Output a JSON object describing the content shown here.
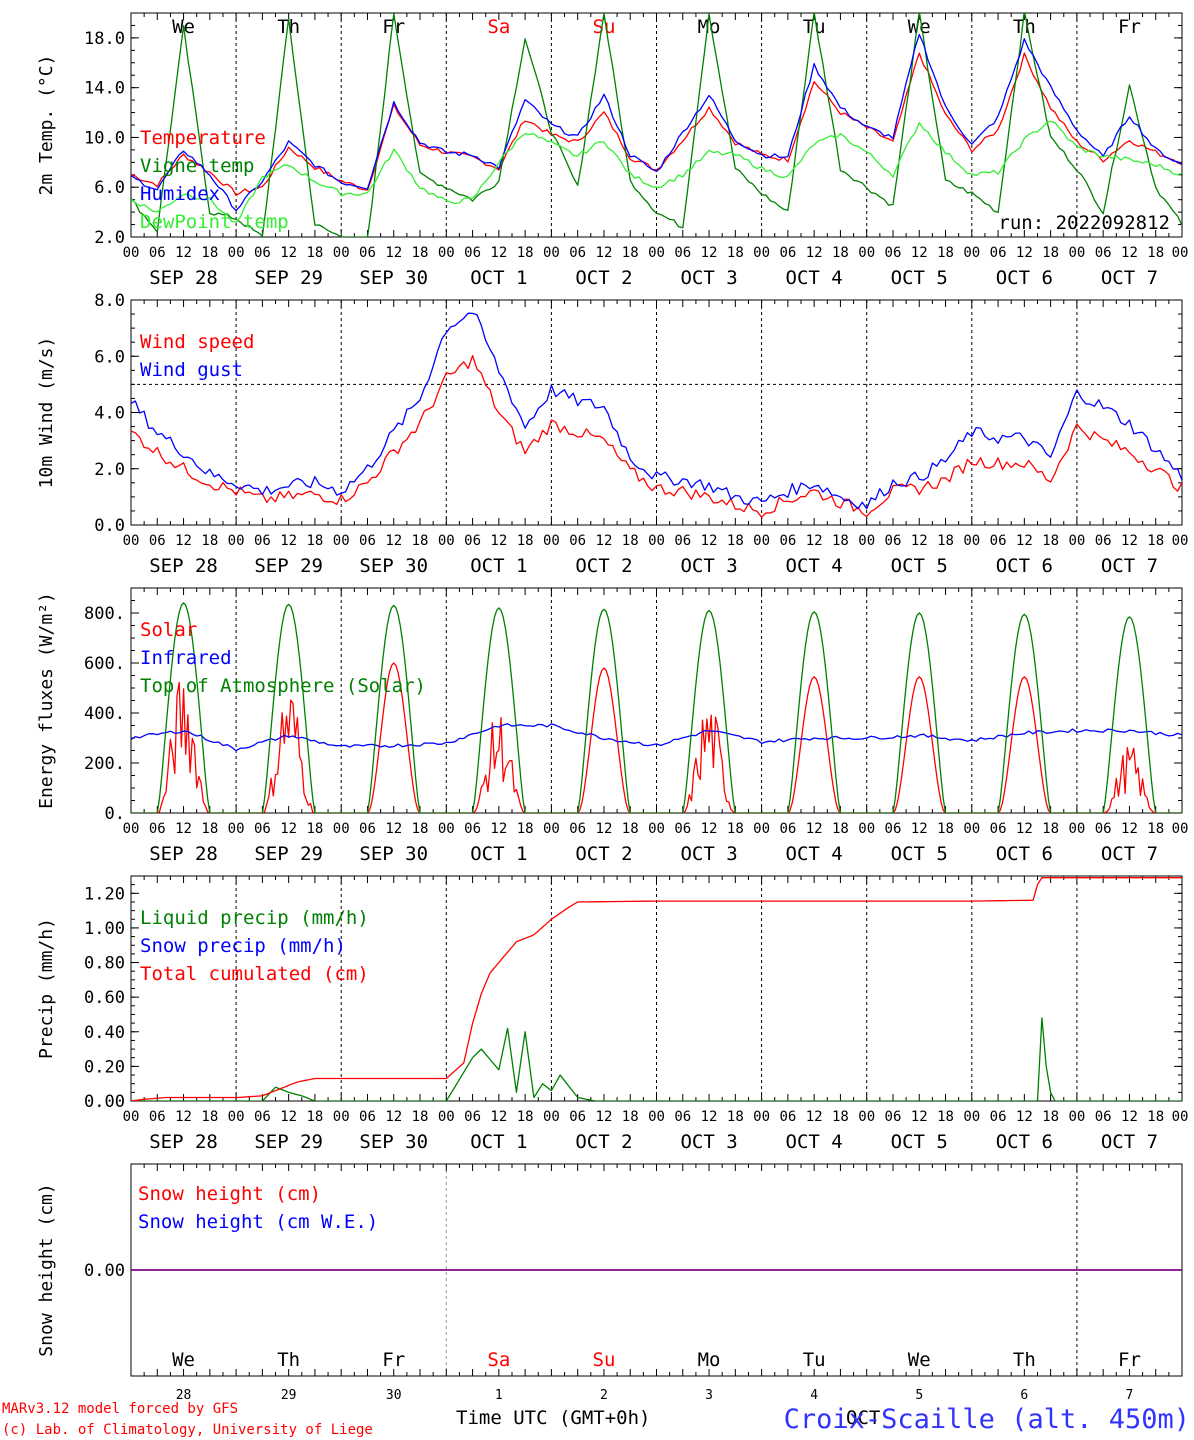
{
  "days": [
    {
      "dow": "We",
      "date": "SEP 28",
      "num": "28",
      "weekend": false
    },
    {
      "dow": "Th",
      "date": "SEP 29",
      "num": "29",
      "weekend": false
    },
    {
      "dow": "Fr",
      "date": "SEP 30",
      "num": "30",
      "weekend": false
    },
    {
      "dow": "Sa",
      "date": "OCT 1",
      "num": "1",
      "weekend": true
    },
    {
      "dow": "Su",
      "date": "OCT 2",
      "num": "2",
      "weekend": true
    },
    {
      "dow": "Mo",
      "date": "OCT 3",
      "num": "3",
      "weekend": false
    },
    {
      "dow": "Tu",
      "date": "OCT 4",
      "num": "4",
      "weekend": false
    },
    {
      "dow": "We",
      "date": "OCT 5",
      "num": "5",
      "weekend": false
    },
    {
      "dow": "Th",
      "date": "OCT 6",
      "num": "6",
      "weekend": false
    },
    {
      "dow": "Fr",
      "date": "OCT 7",
      "num": "7",
      "weekend": false
    }
  ],
  "hour_labels": [
    "00",
    "06",
    "12",
    "18"
  ],
  "last_hour_label": "00",
  "run_label": "run: 2022092812",
  "footer": {
    "model": "MARv3.12 model forced by GFS",
    "lab": "(c) Lab. of Climatology, University of Liege",
    "axis_title": "Time UTC (GMT+0h)",
    "month": "OCT",
    "station": "Croix-Scaille (alt. 450m)"
  },
  "colors": {
    "red": "#ff0000",
    "green": "#008000",
    "blue": "#0000ff",
    "lightgreen": "#33ee33",
    "purple": "#7f007f",
    "axis": "#000000",
    "weekend": "#ff0000"
  },
  "chart_data": [
    {
      "type": "line",
      "ylabel": "2m Temp. (°C)",
      "ylim": [
        2,
        20
      ],
      "yticks": [
        2,
        6,
        10,
        14,
        18
      ],
      "ytick_labels": [
        "2.0",
        "6.0",
        "10.0",
        "14.0",
        "18.0"
      ],
      "x_unit": "hours since SEP 28 00 UTC",
      "legend_placement": "left",
      "series": [
        {
          "name": "Temperature",
          "color": "#ff0000",
          "x": [
            0,
            6,
            12,
            18,
            24,
            30,
            36,
            42,
            48,
            54,
            60,
            66,
            72,
            78,
            84,
            90,
            96,
            102,
            108,
            114,
            120,
            126,
            132,
            138,
            144,
            150,
            156,
            162,
            168,
            174,
            180,
            186,
            192,
            198,
            204,
            210,
            216,
            222,
            228,
            234,
            240
          ],
          "values": [
            7.0,
            6.2,
            8.6,
            7.2,
            5.5,
            6.0,
            9.2,
            7.6,
            6.5,
            5.8,
            12.5,
            9.4,
            8.8,
            8.4,
            7.5,
            11.5,
            10.2,
            9.6,
            12.0,
            8.4,
            7.4,
            9.8,
            12.4,
            9.6,
            8.6,
            8.2,
            14.5,
            12.0,
            10.8,
            9.6,
            16.8,
            11.8,
            9.0,
            10.6,
            16.6,
            12.4,
            9.6,
            8.2,
            9.8,
            8.8,
            8.0
          ]
        },
        {
          "name": "Vigne temp",
          "color": "#008000",
          "x": [
            0,
            6,
            12,
            18,
            24,
            30,
            36,
            42,
            48,
            54,
            60,
            66,
            72,
            78,
            84,
            90,
            96,
            102,
            108,
            114,
            120,
            126,
            132,
            138,
            144,
            150,
            156,
            162,
            168,
            174,
            180,
            186,
            192,
            198,
            204,
            210,
            216,
            222,
            228,
            234,
            240
          ],
          "values": [
            5.0,
            2.5,
            18.8,
            4.0,
            3.5,
            2.0,
            19.5,
            3.0,
            2.0,
            1.5,
            20.0,
            7.0,
            6.0,
            5.0,
            6.5,
            18.0,
            10.5,
            6.0,
            20.0,
            6.5,
            4.0,
            2.8,
            20.0,
            7.5,
            5.5,
            4.0,
            20.0,
            7.5,
            6.0,
            4.5,
            20.0,
            6.5,
            5.5,
            4.0,
            20.0,
            10.0,
            7.5,
            4.0,
            14.2,
            6.0,
            3.0
          ]
        },
        {
          "name": "Humidex",
          "color": "#0000ff",
          "x": [
            0,
            6,
            12,
            18,
            24,
            30,
            36,
            42,
            48,
            54,
            60,
            66,
            72,
            78,
            84,
            90,
            96,
            102,
            108,
            114,
            120,
            126,
            132,
            138,
            144,
            150,
            156,
            162,
            168,
            174,
            180,
            186,
            192,
            198,
            204,
            210,
            216,
            222,
            228,
            234,
            240
          ],
          "values": [
            6.8,
            5.8,
            9.0,
            7.0,
            4.2,
            6.5,
            9.6,
            7.8,
            6.4,
            6.0,
            12.8,
            9.6,
            8.8,
            8.6,
            7.6,
            13.0,
            11.0,
            10.0,
            13.4,
            8.6,
            7.2,
            10.4,
            13.4,
            9.8,
            8.6,
            8.4,
            15.8,
            12.4,
            10.8,
            10.0,
            18.4,
            12.4,
            9.4,
            11.6,
            17.8,
            14.0,
            10.6,
            8.4,
            11.8,
            9.0,
            7.8
          ]
        },
        {
          "name": "DewPoint temp",
          "color": "#33ee33",
          "x": [
            0,
            6,
            12,
            18,
            24,
            30,
            36,
            42,
            48,
            54,
            60,
            66,
            72,
            78,
            84,
            90,
            96,
            102,
            108,
            114,
            120,
            126,
            132,
            138,
            144,
            150,
            156,
            162,
            168,
            174,
            180,
            186,
            192,
            198,
            204,
            210,
            216,
            222,
            228,
            234,
            240
          ],
          "values": [
            5.0,
            4.0,
            5.5,
            5.0,
            3.0,
            6.8,
            7.8,
            6.5,
            5.5,
            5.5,
            9.0,
            6.0,
            4.8,
            5.0,
            8.0,
            10.5,
            9.5,
            8.5,
            9.8,
            7.0,
            6.0,
            7.0,
            8.8,
            8.6,
            7.5,
            6.8,
            9.5,
            10.2,
            8.8,
            7.0,
            11.2,
            8.8,
            7.0,
            7.2,
            9.8,
            11.4,
            9.2,
            8.5,
            8.2,
            7.8,
            7.0
          ]
        }
      ]
    },
    {
      "type": "line",
      "ylabel": "10m Wind (m/s)",
      "ylim": [
        0,
        8
      ],
      "yticks": [
        0,
        2,
        4,
        6,
        8
      ],
      "ytick_labels": [
        "0.0",
        "2.0",
        "4.0",
        "6.0",
        "8.0"
      ],
      "reference_line": 5,
      "legend_placement": "left",
      "series": [
        {
          "name": "Wind speed",
          "color": "#ff0000",
          "x": [
            0,
            6,
            12,
            18,
            24,
            30,
            36,
            42,
            48,
            54,
            60,
            66,
            72,
            78,
            84,
            90,
            96,
            102,
            108,
            114,
            120,
            126,
            132,
            138,
            144,
            150,
            156,
            162,
            168,
            174,
            180,
            186,
            192,
            198,
            204,
            210,
            216,
            222,
            228,
            234,
            240
          ],
          "values": [
            3.3,
            2.6,
            2.0,
            1.5,
            1.2,
            0.9,
            1.0,
            1.1,
            0.9,
            1.5,
            2.6,
            3.6,
            5.2,
            5.9,
            4.0,
            2.6,
            3.6,
            3.3,
            3.0,
            1.9,
            1.3,
            1.2,
            1.0,
            0.7,
            0.5,
            0.9,
            1.2,
            0.8,
            0.5,
            1.2,
            1.3,
            1.6,
            2.3,
            2.2,
            2.2,
            1.6,
            3.5,
            3.0,
            2.6,
            2.0,
            1.3
          ]
        },
        {
          "name": "Wind gust",
          "color": "#0000ff",
          "x": [
            0,
            6,
            12,
            18,
            24,
            30,
            36,
            42,
            48,
            54,
            60,
            66,
            72,
            78,
            84,
            90,
            96,
            102,
            108,
            114,
            120,
            126,
            132,
            138,
            144,
            150,
            156,
            162,
            168,
            174,
            180,
            186,
            192,
            198,
            204,
            210,
            216,
            222,
            228,
            234,
            240
          ],
          "values": [
            4.4,
            3.3,
            2.6,
            1.8,
            1.5,
            1.2,
            1.4,
            1.5,
            1.2,
            2.0,
            3.3,
            4.5,
            7.0,
            7.6,
            5.5,
            3.5,
            4.8,
            4.4,
            4.2,
            2.4,
            1.7,
            1.6,
            1.4,
            1.0,
            0.8,
            1.2,
            1.5,
            1.0,
            0.7,
            1.5,
            1.7,
            2.3,
            3.3,
            3.1,
            3.1,
            2.4,
            4.7,
            4.2,
            3.6,
            2.7,
            1.7
          ]
        }
      ]
    },
    {
      "type": "line",
      "ylabel": "Energy fluxes (W/m²)",
      "ylim": [
        0,
        900
      ],
      "yticks": [
        0,
        200,
        400,
        600,
        800
      ],
      "ytick_labels": [
        "0.",
        "200.",
        "400.",
        "600.",
        "800."
      ],
      "legend_placement": "left",
      "series": [
        {
          "name": "Solar",
          "color": "#ff0000",
          "day_peaks": [
            580,
            550,
            600,
            420,
            580,
            470,
            545,
            545,
            545,
            280
          ]
        },
        {
          "name": "Infrared",
          "color": "#0000ff",
          "x": [
            0,
            12,
            24,
            36,
            48,
            60,
            72,
            84,
            96,
            108,
            120,
            132,
            144,
            156,
            168,
            180,
            192,
            204,
            216,
            228,
            240
          ],
          "values": [
            300,
            330,
            255,
            310,
            265,
            270,
            280,
            350,
            350,
            300,
            270,
            330,
            285,
            300,
            300,
            310,
            290,
            320,
            330,
            330,
            310
          ]
        },
        {
          "name": "Top of Atmosphere (Solar)",
          "color": "#008000",
          "day_peaks": [
            840,
            835,
            830,
            820,
            815,
            810,
            805,
            800,
            795,
            785
          ]
        }
      ]
    },
    {
      "type": "line",
      "ylabel": "Precip (mm/h)",
      "ylim": [
        0,
        1.3
      ],
      "yticks": [
        0,
        0.2,
        0.4,
        0.6,
        0.8,
        1.0,
        1.2
      ],
      "ytick_labels": [
        "0.00",
        "0.20",
        "0.40",
        "0.60",
        "0.80",
        "1.00",
        "1.20"
      ],
      "legend_placement": "left",
      "series": [
        {
          "name": "Liquid precip (mm/h)",
          "color": "#008000",
          "x": [
            0,
            30,
            33,
            36,
            39,
            42,
            48,
            72,
            78,
            80,
            84,
            86,
            88,
            90,
            92,
            94,
            96,
            98,
            102,
            106,
            110,
            120,
            144,
            190,
            207,
            208,
            209,
            210,
            211,
            216,
            240
          ],
          "values": [
            0,
            0,
            0.08,
            0.05,
            0.03,
            0,
            0,
            0,
            0.25,
            0.3,
            0.18,
            0.42,
            0.05,
            0.4,
            0.02,
            0.1,
            0.06,
            0.15,
            0.02,
            0,
            0,
            0,
            0,
            0,
            0,
            0.48,
            0.2,
            0.05,
            0,
            0,
            0
          ]
        },
        {
          "name": "Snow precip (mm/h)",
          "color": "#0000ff",
          "x": [
            0,
            240
          ],
          "values": [
            0,
            0
          ]
        },
        {
          "name": "Total cumulated (cm)",
          "color": "#ff0000",
          "x": [
            0,
            3,
            8,
            24,
            30,
            34,
            38,
            42,
            48,
            72,
            76,
            78,
            80,
            82,
            84,
            86,
            88,
            90,
            92,
            96,
            100,
            102,
            120,
            144,
            168,
            192,
            206,
            207,
            208,
            210,
            240
          ],
          "values": [
            0,
            0.01,
            0.02,
            0.02,
            0.03,
            0.07,
            0.11,
            0.13,
            0.13,
            0.13,
            0.22,
            0.45,
            0.62,
            0.74,
            0.8,
            0.86,
            0.92,
            0.94,
            0.96,
            1.05,
            1.12,
            1.15,
            1.155,
            1.155,
            1.155,
            1.155,
            1.16,
            1.25,
            1.29,
            1.29,
            1.29
          ]
        }
      ]
    },
    {
      "type": "line",
      "ylabel": "Snow height (cm)",
      "ylim": [
        -1,
        1
      ],
      "yticks": [
        0
      ],
      "ytick_labels": [
        "0.00"
      ],
      "legend_placement": "left",
      "series": [
        {
          "name": "Snow height (cm)",
          "color": "#ff0000",
          "x": [
            0,
            240
          ],
          "values": [
            0,
            0
          ]
        },
        {
          "name": "Snow height (cm W.E.)",
          "color": "#0000ff",
          "x": [
            0,
            240
          ],
          "values": [
            0,
            0
          ]
        }
      ]
    }
  ]
}
